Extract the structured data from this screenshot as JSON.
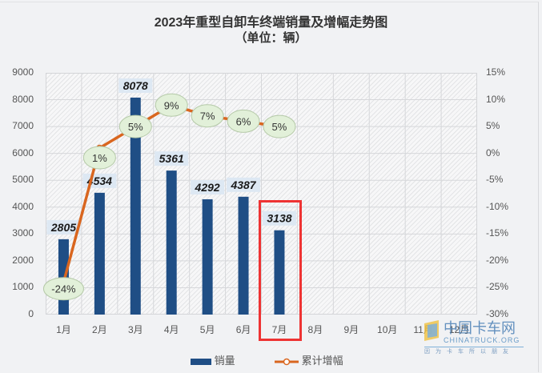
{
  "chart_data": {
    "type": "bar",
    "title": "2023年重型自卸车终端销量及增幅走势图",
    "subtitle": "（单位：辆）",
    "categories": [
      "1月",
      "2月",
      "3月",
      "4月",
      "5月",
      "6月",
      "7月",
      "8月",
      "9月",
      "10月",
      "11月",
      "12月"
    ],
    "series": [
      {
        "name": "销量",
        "type": "bar",
        "axis": "left",
        "color": "#1f4e85",
        "values": [
          2805,
          4534,
          8078,
          5361,
          4292,
          4387,
          3138,
          null,
          null,
          null,
          null,
          null
        ]
      },
      {
        "name": "累计增幅",
        "type": "line",
        "axis": "right",
        "color": "#d9661f",
        "values": [
          -24,
          1,
          5,
          9,
          7,
          6,
          5,
          null,
          null,
          null,
          null,
          null
        ],
        "labels": [
          "-24%",
          "1%",
          "5%",
          "9%",
          "7%",
          "6%",
          "5%"
        ]
      }
    ],
    "ylim": [
      0,
      9000
    ],
    "y_ticks": [
      "0",
      "1000",
      "2000",
      "3000",
      "4000",
      "5000",
      "6000",
      "7000",
      "8000",
      "9000"
    ],
    "y2lim": [
      -30,
      15
    ],
    "y2_ticks": [
      "15%",
      "10%",
      "5%",
      "0%",
      "-5%",
      "-10%",
      "-15%",
      "-20%",
      "-25%",
      "-30%"
    ],
    "grid": true,
    "legend_position": "bottom",
    "annotations": [
      {
        "type": "highlight-box",
        "target": "7月",
        "color": "#ee3333"
      }
    ]
  },
  "legend": {
    "bar": "销量",
    "line": "累计增幅"
  },
  "watermark": {
    "name": "中国卡车网",
    "domain": "CHINATRUCK.ORG",
    "slogan": "因为卡车所以朋友"
  }
}
